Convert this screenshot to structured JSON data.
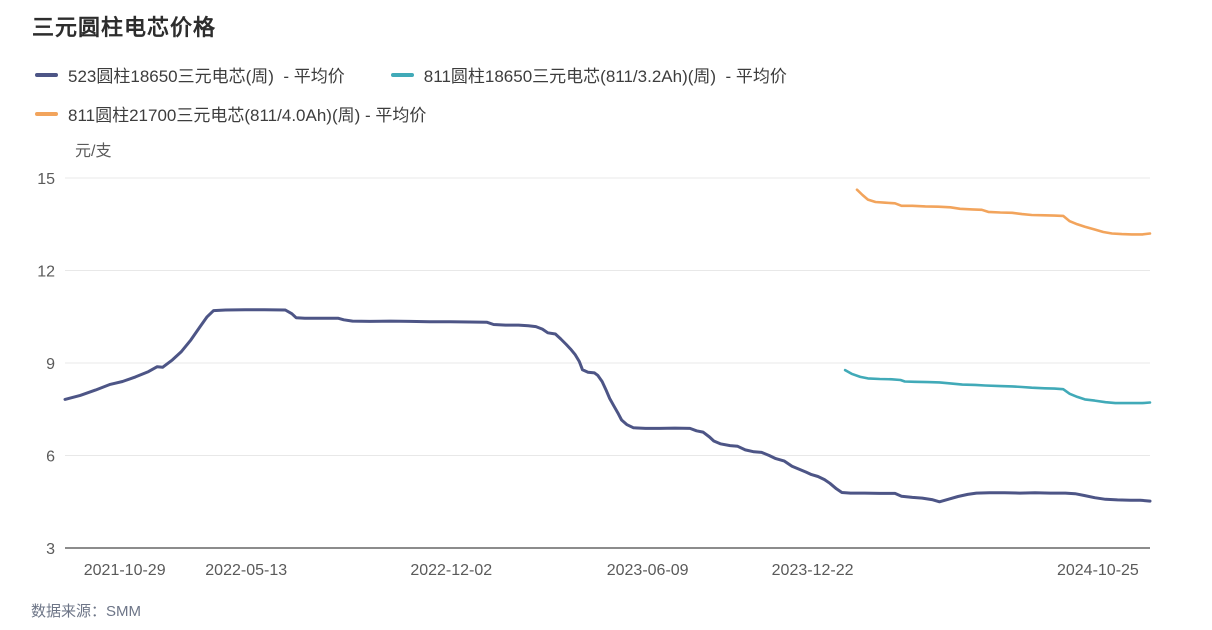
{
  "page": {
    "title": "三元圆柱电芯价格",
    "source_label": "数据来源：SMM"
  },
  "chart_data": {
    "type": "line",
    "title": "三元圆柱电芯价格",
    "unit_label": "元/支",
    "ylim": [
      3,
      15
    ],
    "yticks": [
      3,
      6,
      9,
      12,
      15
    ],
    "grid": true,
    "legend_position": "top-left",
    "colors": {
      "axis": "#8c8c8c",
      "gridline": "#e8e8e8",
      "tick_text": "#5a5a5a"
    },
    "xticks": [
      {
        "label": "2021-10-29",
        "pos": 0.055
      },
      {
        "label": "2022-05-13",
        "pos": 0.167
      },
      {
        "label": "2022-12-02",
        "pos": 0.356
      },
      {
        "label": "2023-06-09",
        "pos": 0.537
      },
      {
        "label": "2023-12-22",
        "pos": 0.689
      },
      {
        "label": "2024-10-25",
        "pos": 0.952
      }
    ],
    "series": [
      {
        "name": "523圆柱18650三元电芯(周)  - 平均价",
        "color": "#4d5586",
        "points": [
          [
            0,
            7.82
          ],
          [
            0.014,
            7.95
          ],
          [
            0.028,
            8.12
          ],
          [
            0.041,
            8.3
          ],
          [
            0.053,
            8.4
          ],
          [
            0.065,
            8.55
          ],
          [
            0.077,
            8.72
          ],
          [
            0.085,
            8.88
          ],
          [
            0.09,
            8.86
          ],
          [
            0.099,
            9.1
          ],
          [
            0.107,
            9.36
          ],
          [
            0.116,
            9.75
          ],
          [
            0.124,
            10.15
          ],
          [
            0.131,
            10.5
          ],
          [
            0.137,
            10.7
          ],
          [
            0.148,
            10.72
          ],
          [
            0.166,
            10.73
          ],
          [
            0.184,
            10.73
          ],
          [
            0.203,
            10.72
          ],
          [
            0.209,
            10.6
          ],
          [
            0.213,
            10.47
          ],
          [
            0.221,
            10.45
          ],
          [
            0.235,
            10.45
          ],
          [
            0.252,
            10.45
          ],
          [
            0.257,
            10.4
          ],
          [
            0.265,
            10.36
          ],
          [
            0.281,
            10.35
          ],
          [
            0.3,
            10.36
          ],
          [
            0.318,
            10.35
          ],
          [
            0.336,
            10.34
          ],
          [
            0.355,
            10.34
          ],
          [
            0.373,
            10.33
          ],
          [
            0.389,
            10.32
          ],
          [
            0.395,
            10.25
          ],
          [
            0.406,
            10.23
          ],
          [
            0.418,
            10.23
          ],
          [
            0.427,
            10.21
          ],
          [
            0.434,
            10.18
          ],
          [
            0.44,
            10.1
          ],
          [
            0.445,
            9.98
          ],
          [
            0.452,
            9.94
          ],
          [
            0.457,
            9.78
          ],
          [
            0.462,
            9.6
          ],
          [
            0.466,
            9.45
          ],
          [
            0.47,
            9.28
          ],
          [
            0.474,
            9.05
          ],
          [
            0.477,
            8.78
          ],
          [
            0.482,
            8.7
          ],
          [
            0.488,
            8.68
          ],
          [
            0.491,
            8.6
          ],
          [
            0.495,
            8.4
          ],
          [
            0.499,
            8.1
          ],
          [
            0.502,
            7.85
          ],
          [
            0.506,
            7.6
          ],
          [
            0.51,
            7.35
          ],
          [
            0.513,
            7.15
          ],
          [
            0.518,
            7.0
          ],
          [
            0.524,
            6.9
          ],
          [
            0.535,
            6.88
          ],
          [
            0.548,
            6.88
          ],
          [
            0.562,
            6.89
          ],
          [
            0.576,
            6.88
          ],
          [
            0.582,
            6.8
          ],
          [
            0.588,
            6.76
          ],
          [
            0.594,
            6.6
          ],
          [
            0.598,
            6.47
          ],
          [
            0.604,
            6.38
          ],
          [
            0.613,
            6.32
          ],
          [
            0.62,
            6.3
          ],
          [
            0.627,
            6.18
          ],
          [
            0.635,
            6.12
          ],
          [
            0.642,
            6.1
          ],
          [
            0.649,
            6.0
          ],
          [
            0.655,
            5.9
          ],
          [
            0.663,
            5.82
          ],
          [
            0.67,
            5.65
          ],
          [
            0.677,
            5.55
          ],
          [
            0.683,
            5.46
          ],
          [
            0.688,
            5.38
          ],
          [
            0.694,
            5.32
          ],
          [
            0.7,
            5.22
          ],
          [
            0.705,
            5.1
          ],
          [
            0.711,
            4.92
          ],
          [
            0.716,
            4.8
          ],
          [
            0.724,
            4.78
          ],
          [
            0.737,
            4.78
          ],
          [
            0.751,
            4.77
          ],
          [
            0.765,
            4.77
          ],
          [
            0.771,
            4.68
          ],
          [
            0.781,
            4.64
          ],
          [
            0.79,
            4.62
          ],
          [
            0.799,
            4.57
          ],
          [
            0.806,
            4.5
          ],
          [
            0.814,
            4.58
          ],
          [
            0.823,
            4.67
          ],
          [
            0.832,
            4.74
          ],
          [
            0.84,
            4.78
          ],
          [
            0.852,
            4.79
          ],
          [
            0.866,
            4.79
          ],
          [
            0.88,
            4.78
          ],
          [
            0.894,
            4.79
          ],
          [
            0.908,
            4.78
          ],
          [
            0.922,
            4.78
          ],
          [
            0.931,
            4.76
          ],
          [
            0.94,
            4.7
          ],
          [
            0.949,
            4.63
          ],
          [
            0.959,
            4.58
          ],
          [
            0.97,
            4.56
          ],
          [
            0.982,
            4.55
          ],
          [
            0.991,
            4.55
          ],
          [
            1,
            4.52
          ]
        ]
      },
      {
        "name": "811圆柱18650三元电芯(811/3.2Ah)(周)  - 平均价",
        "color": "#41aab8",
        "points": [
          [
            0.719,
            8.77
          ],
          [
            0.725,
            8.65
          ],
          [
            0.733,
            8.55
          ],
          [
            0.74,
            8.5
          ],
          [
            0.751,
            8.48
          ],
          [
            0.762,
            8.47
          ],
          [
            0.77,
            8.45
          ],
          [
            0.774,
            8.4
          ],
          [
            0.783,
            8.39
          ],
          [
            0.795,
            8.38
          ],
          [
            0.806,
            8.37
          ],
          [
            0.816,
            8.34
          ],
          [
            0.827,
            8.3
          ],
          [
            0.839,
            8.29
          ],
          [
            0.848,
            8.27
          ],
          [
            0.862,
            8.25
          ],
          [
            0.873,
            8.24
          ],
          [
            0.882,
            8.22
          ],
          [
            0.891,
            8.2
          ],
          [
            0.903,
            8.18
          ],
          [
            0.912,
            8.17
          ],
          [
            0.92,
            8.15
          ],
          [
            0.926,
            8.0
          ],
          [
            0.933,
            7.9
          ],
          [
            0.94,
            7.82
          ],
          [
            0.949,
            7.78
          ],
          [
            0.959,
            7.73
          ],
          [
            0.968,
            7.7
          ],
          [
            0.977,
            7.7
          ],
          [
            0.986,
            7.7
          ],
          [
            0.993,
            7.7
          ],
          [
            1,
            7.72
          ]
        ]
      },
      {
        "name": "811圆柱21700三元电芯(811/4.0Ah)(周) - 平均价",
        "color": "#f2a45c",
        "points": [
          [
            0.73,
            14.62
          ],
          [
            0.735,
            14.45
          ],
          [
            0.74,
            14.3
          ],
          [
            0.747,
            14.22
          ],
          [
            0.756,
            14.2
          ],
          [
            0.765,
            14.18
          ],
          [
            0.771,
            14.1
          ],
          [
            0.781,
            14.1
          ],
          [
            0.793,
            14.08
          ],
          [
            0.805,
            14.07
          ],
          [
            0.816,
            14.05
          ],
          [
            0.825,
            14.0
          ],
          [
            0.836,
            13.98
          ],
          [
            0.845,
            13.97
          ],
          [
            0.851,
            13.9
          ],
          [
            0.862,
            13.88
          ],
          [
            0.873,
            13.87
          ],
          [
            0.882,
            13.83
          ],
          [
            0.891,
            13.8
          ],
          [
            0.903,
            13.79
          ],
          [
            0.912,
            13.78
          ],
          [
            0.92,
            13.77
          ],
          [
            0.926,
            13.6
          ],
          [
            0.933,
            13.5
          ],
          [
            0.94,
            13.42
          ],
          [
            0.949,
            13.33
          ],
          [
            0.957,
            13.25
          ],
          [
            0.965,
            13.2
          ],
          [
            0.974,
            13.18
          ],
          [
            0.983,
            13.17
          ],
          [
            0.993,
            13.17
          ],
          [
            1,
            13.2
          ]
        ]
      }
    ]
  }
}
